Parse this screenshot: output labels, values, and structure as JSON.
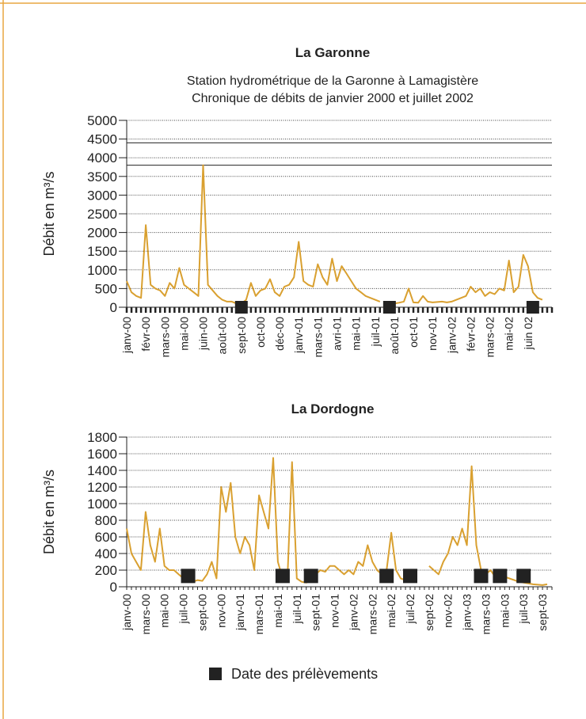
{
  "chart_data": [
    {
      "type": "line",
      "title": "La Garonne",
      "subtitle": [
        "Station hydrométrique de la Garonne à Lamagistère",
        "Chronique de débits de janvier 2000 et juillet 2002"
      ],
      "ylabel": "Débit en m³/s",
      "categories": [
        "janv-00",
        null,
        null,
        null,
        "févr-00",
        null,
        null,
        null,
        "mars-00",
        null,
        null,
        null,
        "mai-00",
        null,
        null,
        null,
        "juin-00",
        null,
        null,
        null,
        "août-00",
        null,
        null,
        null,
        "sept-00",
        null,
        null,
        null,
        "oct-00",
        null,
        null,
        null,
        "déc-00",
        null,
        null,
        null,
        "janv-01",
        null,
        null,
        null,
        "mars-01",
        null,
        null,
        null,
        "avri-01",
        null,
        null,
        null,
        "mai-01",
        null,
        null,
        null,
        "juil-01",
        null,
        null,
        null,
        "août-01",
        null,
        null,
        null,
        "oct-01",
        null,
        null,
        null,
        "nov-01",
        null,
        null,
        null,
        "janv-02",
        null,
        null,
        null,
        "févr-02",
        null,
        null,
        null,
        "mars-02",
        null,
        null,
        null,
        "mai-02",
        null,
        null,
        null,
        "juin 02",
        null,
        null,
        null,
        null,
        null
      ],
      "series": [
        {
          "color": "#d9a030",
          "values": [
            700,
            400,
            300,
            250,
            2200,
            600,
            500,
            450,
            300,
            650,
            500,
            1050,
            600,
            500,
            400,
            300,
            3800,
            600,
            450,
            300,
            200,
            150,
            150,
            100,
            100,
            200,
            650,
            300,
            450,
            500,
            750,
            400,
            300,
            550,
            600,
            800,
            1750,
            700,
            600,
            550,
            1150,
            800,
            600,
            1300,
            700,
            1100,
            900,
            700,
            500,
            400,
            300,
            250,
            200,
            150,
            null,
            null,
            100,
            120,
            150,
            500,
            130,
            120,
            300,
            150,
            130,
            140,
            150,
            130,
            150,
            200,
            250,
            300,
            550,
            400,
            500,
            300,
            400,
            350,
            500,
            450,
            1250,
            400,
            550,
            1400,
            1100,
            400,
            250,
            200,
            null,
            null
          ]
        },
        {
          "color": "#222222",
          "marker": "square",
          "values": [
            null,
            null,
            null,
            null,
            null,
            null,
            null,
            null,
            null,
            null,
            null,
            null,
            null,
            null,
            null,
            null,
            null,
            null,
            null,
            null,
            null,
            null,
            null,
            null,
            0,
            null,
            null,
            null,
            null,
            null,
            null,
            null,
            null,
            null,
            null,
            null,
            null,
            null,
            null,
            null,
            null,
            null,
            null,
            null,
            null,
            null,
            null,
            null,
            null,
            null,
            null,
            null,
            null,
            null,
            null,
            0,
            null,
            null,
            null,
            null,
            null,
            null,
            null,
            null,
            null,
            null,
            null,
            null,
            null,
            null,
            null,
            null,
            null,
            null,
            null,
            null,
            null,
            null,
            null,
            null,
            null,
            null,
            null,
            null,
            null,
            0,
            null,
            null,
            null,
            null
          ]
        }
      ],
      "ylim": [
        0,
        5000
      ],
      "yticks": [
        0,
        500,
        1000,
        1500,
        2000,
        2500,
        3000,
        3500,
        4000,
        4500,
        5000
      ],
      "reference_lines": [
        4400,
        3800
      ],
      "grid": true
    },
    {
      "type": "line",
      "title": "La Dordogne",
      "ylabel": "Débit en m³/s",
      "categories": [
        "janv-00",
        null,
        null,
        null,
        "mars-00",
        null,
        null,
        null,
        "mai-00",
        null,
        null,
        null,
        "juil-00",
        null,
        null,
        null,
        "sept-00",
        null,
        null,
        null,
        "nov-00",
        null,
        null,
        null,
        "janv-01",
        null,
        null,
        null,
        "mars-01",
        null,
        null,
        null,
        "mai-01",
        null,
        null,
        null,
        "juil-01",
        null,
        null,
        null,
        "sept-01",
        null,
        null,
        null,
        "nov-01",
        null,
        null,
        null,
        "janv-02",
        null,
        null,
        null,
        "mars-02",
        null,
        null,
        null,
        "mai-02",
        null,
        null,
        null,
        "juil-02",
        null,
        null,
        null,
        "sept-02",
        null,
        null,
        null,
        "nov-02",
        null,
        null,
        null,
        "janv-03",
        null,
        null,
        null,
        "mars-03",
        null,
        null,
        null,
        "mai-03",
        null,
        null,
        null,
        "juil-03",
        null,
        null,
        null,
        "sept-03",
        null,
        null
      ],
      "series": [
        {
          "color": "#d9a030",
          "values": [
            700,
            400,
            300,
            200,
            900,
            500,
            300,
            700,
            250,
            200,
            200,
            150,
            100,
            60,
            60,
            80,
            70,
            150,
            300,
            100,
            1200,
            900,
            1250,
            600,
            400,
            600,
            500,
            200,
            1100,
            900,
            700,
            1550,
            300,
            100,
            80,
            1500,
            100,
            60,
            50,
            70,
            150,
            200,
            180,
            250,
            250,
            200,
            150,
            200,
            150,
            300,
            250,
            500,
            300,
            200,
            150,
            200,
            650,
            200,
            100,
            80,
            null,
            null,
            null,
            null,
            250,
            200,
            150,
            300,
            400,
            600,
            500,
            700,
            500,
            1450,
            500,
            200,
            150,
            200,
            120,
            150,
            120,
            100,
            80,
            60,
            50,
            40,
            30,
            25,
            20,
            30,
            null
          ]
        },
        {
          "color": "#222222",
          "marker": "square",
          "name": "Date des prélèvements",
          "values": [
            null,
            null,
            null,
            null,
            null,
            null,
            null,
            null,
            null,
            null,
            null,
            null,
            null,
            130,
            null,
            null,
            null,
            null,
            null,
            null,
            null,
            null,
            null,
            null,
            null,
            null,
            null,
            null,
            null,
            null,
            null,
            null,
            null,
            130,
            null,
            null,
            null,
            null,
            null,
            130,
            null,
            null,
            null,
            null,
            null,
            null,
            null,
            null,
            null,
            null,
            null,
            null,
            null,
            null,
            null,
            130,
            null,
            null,
            null,
            null,
            130,
            null,
            null,
            null,
            null,
            null,
            null,
            null,
            null,
            null,
            null,
            null,
            null,
            null,
            null,
            130,
            null,
            null,
            null,
            130,
            null,
            null,
            null,
            null,
            130,
            null,
            null,
            null,
            null,
            null,
            null
          ]
        }
      ],
      "ylim": [
        0,
        1800
      ],
      "yticks": [
        0,
        200,
        400,
        600,
        800,
        1000,
        1200,
        1400,
        1600,
        1800
      ],
      "grid": true
    }
  ]
}
